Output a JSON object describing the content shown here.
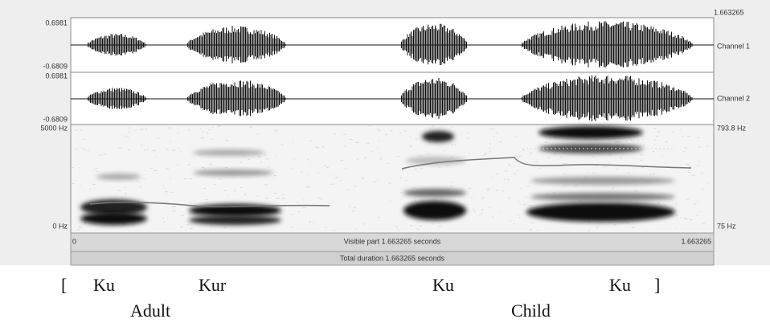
{
  "header": {
    "time_end": "1.663265"
  },
  "channels": [
    {
      "max": "0.6981",
      "min": "-0.6809",
      "label": "Channel 1"
    },
    {
      "max": "0.6981",
      "min": "-0.6809",
      "label": "Channel 2"
    }
  ],
  "spectrogram": {
    "freq_max": "5000 Hz",
    "freq_min": "0 Hz",
    "pitch_max": "793.8 Hz",
    "pitch_min": "75 Hz"
  },
  "time_axis": {
    "start": "0",
    "end": "1.663265",
    "visible": "Visible part 1.663265 seconds",
    "total": "Total duration 1.663265 seconds"
  },
  "caption": {
    "open_bracket": "[",
    "syllables": [
      "Ku",
      "Kur",
      "Ku",
      "Ku"
    ],
    "close_bracket": "]",
    "speakers": [
      "Adult",
      "Child"
    ]
  }
}
